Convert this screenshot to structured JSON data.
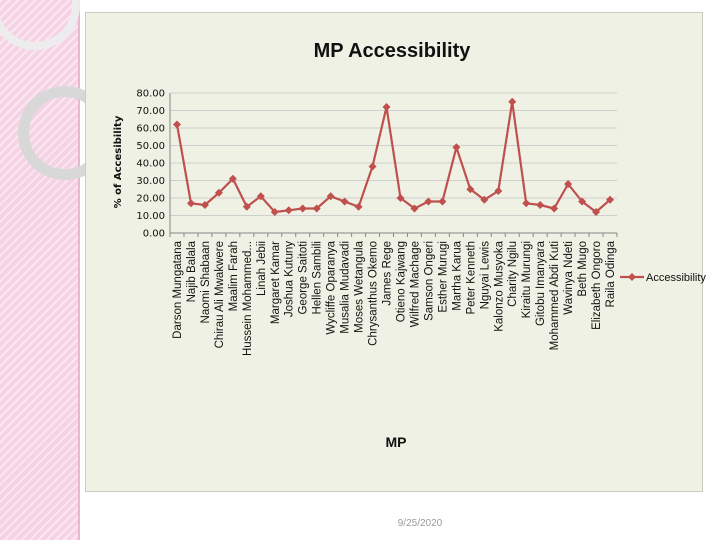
{
  "slide": {
    "footer_date": "9/25/2020"
  },
  "colors": {
    "series": "#c0504d",
    "panel": "#eef1e3",
    "band": "#f5d3e4"
  },
  "chart_data": {
    "type": "line",
    "title": "MP Accessibility",
    "xlabel": "MP",
    "ylabel": "% of Accesibility",
    "ylim": [
      0,
      80
    ],
    "yticks": [
      "0.00",
      "10.00",
      "20.00",
      "30.00",
      "40.00",
      "50.00",
      "60.00",
      "70.00",
      "80.00"
    ],
    "grid": true,
    "legend_position": "right",
    "categories": [
      "Darson Mungatana",
      "Najib Balala",
      "Naomi Shabaan",
      "Chirau Ali Mwakwere",
      "Maalim Farah",
      "Hussein Mohammed...",
      "Linah Jebii",
      "Margaret Kamar",
      "Joshua Kutuny",
      "George Saitoti",
      "Hellen Sambili",
      "Wycliffe Oparanya",
      "Musalia Mudavadi",
      "Moses Wetangula",
      "Chrysanthus Okemo",
      "James Rege",
      "Otieno Kajwang",
      "Wilfred Machage",
      "Samson Ongeri",
      "Esther Murugi",
      "Martha Karua",
      "Peter Kenneth",
      "Nguyai Lewis",
      "Kalonzo Musyoka",
      "Charity Ngilu",
      "Kiraitu Murungi",
      "Gitobu Imanyara",
      "Mohammed Abdi Kuti",
      "Wavinya Ndeti",
      "Beth Mugo",
      "Elizabeth Ongoro",
      "Raila Odinga"
    ],
    "series": [
      {
        "name": "Accessibility",
        "values": [
          62,
          17,
          16,
          23,
          31,
          15,
          21,
          12,
          13,
          14,
          14,
          21,
          18,
          15,
          38,
          72,
          20,
          14,
          18,
          18,
          49,
          25,
          19,
          24,
          75,
          17,
          16,
          14,
          28,
          18,
          12,
          19
        ]
      }
    ]
  }
}
